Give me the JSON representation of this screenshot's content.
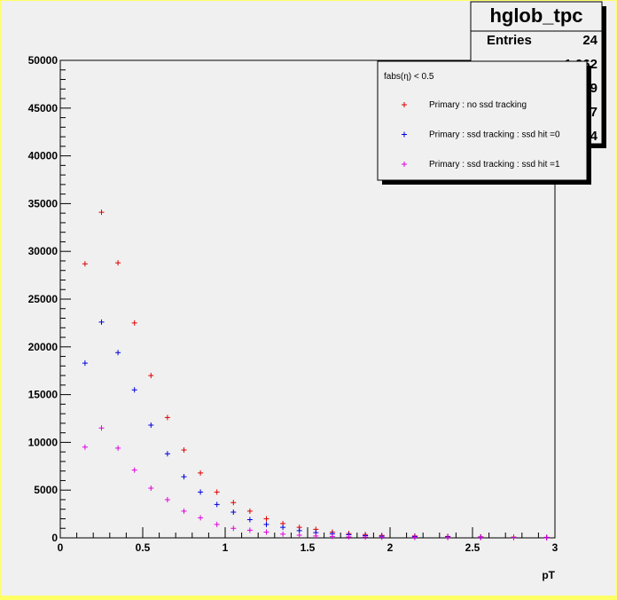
{
  "chart_data": {
    "type": "scatter",
    "title": "",
    "xlabel": "pT",
    "ylabel": "",
    "xlim": [
      0,
      3
    ],
    "ylim": [
      0,
      50000
    ],
    "grid": false,
    "x_ticks": [
      "0",
      "0.5",
      "1",
      "1.5",
      "2",
      "2.5",
      "3"
    ],
    "y_ticks": [
      "0",
      "5000",
      "10000",
      "15000",
      "20000",
      "25000",
      "30000",
      "35000",
      "40000",
      "45000",
      "50000"
    ],
    "legend": {
      "header": "fabs(η) < 0.5",
      "placement": "top-right"
    },
    "stats_box": {
      "title": "hglob_tpc",
      "rows": [
        {
          "label": "Entries",
          "value": "24"
        },
        {
          "label": "",
          "value": "1.062"
        },
        {
          "label": "",
          "value": "9"
        },
        {
          "label": "",
          "value": "7"
        },
        {
          "label": "",
          "value": "4"
        }
      ]
    },
    "series": [
      {
        "name": "Primary : no ssd tracking",
        "color": "#e00000",
        "x": [
          0.15,
          0.25,
          0.35,
          0.45,
          0.55,
          0.65,
          0.75,
          0.85,
          0.95,
          1.05,
          1.15,
          1.25,
          1.35,
          1.45,
          1.55,
          1.65,
          1.75,
          1.85,
          1.95,
          2.15,
          2.35,
          2.55,
          2.75,
          2.95
        ],
        "y": [
          28700,
          34100,
          28800,
          22500,
          17000,
          12600,
          9200,
          6800,
          4800,
          3700,
          2800,
          2000,
          1500,
          1100,
          900,
          600,
          450,
          350,
          250,
          200,
          150,
          110,
          80,
          60
        ]
      },
      {
        "name": "Primary : ssd tracking : ssd hit =0",
        "color": "#0000e0",
        "x": [
          0.15,
          0.25,
          0.35,
          0.45,
          0.55,
          0.65,
          0.75,
          0.85,
          0.95,
          1.05,
          1.15,
          1.25,
          1.35,
          1.45,
          1.55,
          1.65,
          1.75,
          1.85,
          1.95,
          2.15,
          2.35,
          2.55,
          2.75,
          2.95
        ],
        "y": [
          18300,
          22600,
          19400,
          15500,
          11800,
          8800,
          6400,
          4800,
          3500,
          2700,
          1900,
          1400,
          1100,
          750,
          550,
          420,
          320,
          230,
          170,
          130,
          100,
          70,
          50,
          40
        ]
      },
      {
        "name": "Primary : ssd tracking : ssd hit =1",
        "color": "#e000e0",
        "x": [
          0.15,
          0.25,
          0.35,
          0.45,
          0.55,
          0.65,
          0.75,
          0.85,
          0.95,
          1.05,
          1.15,
          1.25,
          1.35,
          1.45,
          1.55,
          1.65,
          1.75,
          1.85,
          1.95,
          2.15,
          2.35,
          2.55,
          2.75,
          2.95
        ],
        "y": [
          9500,
          11500,
          9400,
          7100,
          5200,
          4000,
          2800,
          2100,
          1400,
          1000,
          800,
          600,
          400,
          280,
          200,
          150,
          110,
          80,
          60,
          50,
          40,
          30,
          20,
          15
        ]
      }
    ]
  }
}
